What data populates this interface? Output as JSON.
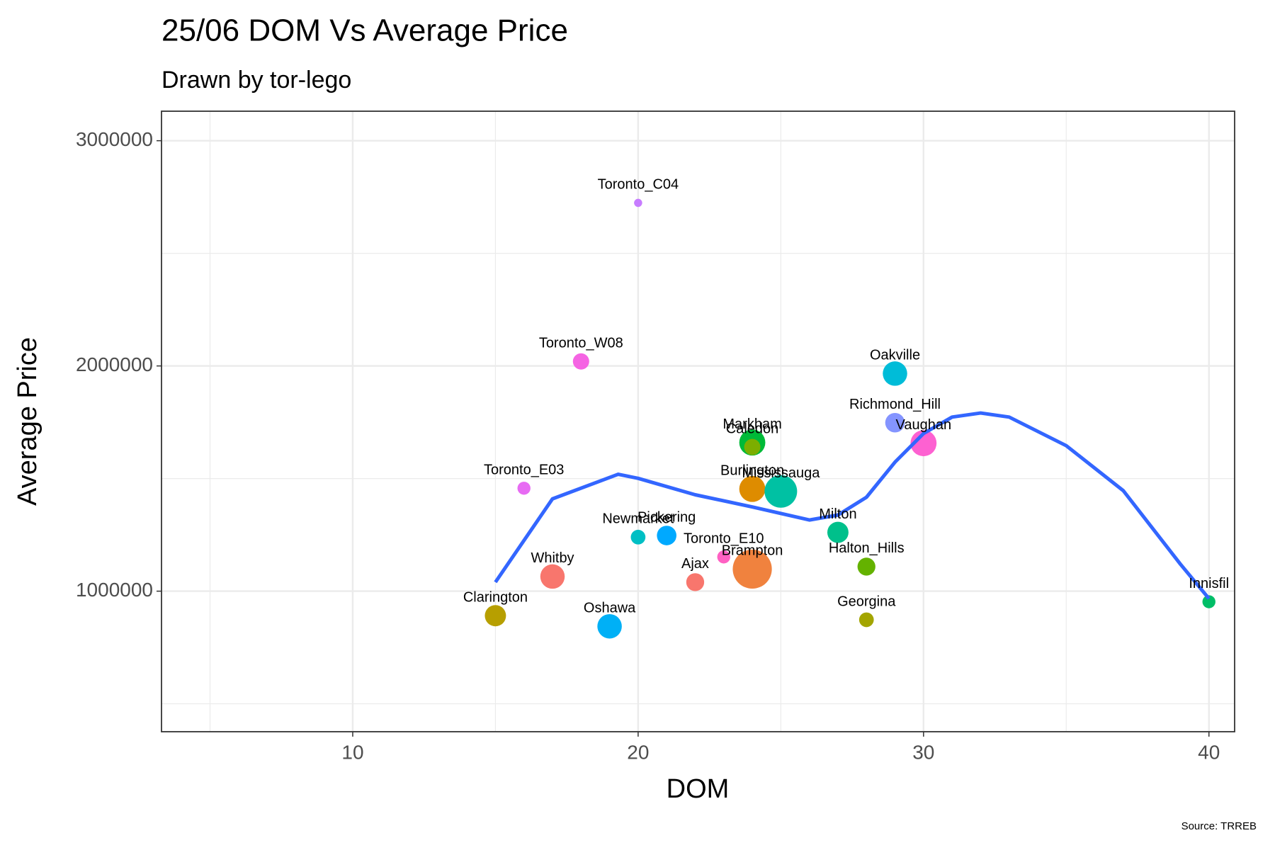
{
  "chart_data": {
    "type": "scatter",
    "title": "25/06 DOM Vs Average Price",
    "subtitle": "Drawn by tor-lego",
    "xlabel": "DOM",
    "ylabel": "Average Price",
    "caption": "Source: TRREB",
    "labels": [
      "Toronto_C04",
      "Toronto_W08",
      "Toronto_E03",
      "Clarington",
      "Whitby",
      "Oshawa",
      "Newmarket",
      "Pickering",
      "Toronto_E10",
      "Ajax",
      "Brampton",
      "Markham",
      "Caledon",
      "Burlington",
      "Mississauga",
      "Milton",
      "Halton_Hills",
      "Georgina",
      "Oakville",
      "Richmond_Hill",
      "Vaughan",
      "Innisfil"
    ],
    "x": [
      20,
      18,
      16,
      15,
      17,
      19,
      20,
      21,
      23,
      22,
      24,
      24,
      24,
      24,
      25,
      27,
      28,
      28,
      29,
      29,
      30,
      40
    ],
    "values": [
      2724000,
      2020000,
      1457000,
      891000,
      1065000,
      844000,
      1240000,
      1247000,
      1152000,
      1040000,
      1098000,
      1660000,
      1640000,
      1454000,
      1443000,
      1261000,
      1109000,
      873000,
      1966000,
      1748000,
      1657000,
      953000
    ],
    "sizes": [
      5,
      10,
      8,
      13,
      15,
      15,
      9,
      12,
      8,
      11,
      24,
      16,
      10,
      16,
      20,
      13,
      11,
      9,
      15,
      12,
      16,
      8
    ],
    "colors": [
      "#c77cff",
      "#f564e3",
      "#e76bf3",
      "#b79f00",
      "#f8766d",
      "#00b0f6",
      "#00bfc4",
      "#00a9ff",
      "#ff61c3",
      "#f8766d",
      "#f0823e",
      "#00ba38",
      "#7cae00",
      "#de8c00",
      "#00c1a3",
      "#00c08b",
      "#64b200",
      "#a3a500",
      "#00bcd8",
      "#8494ff",
      "#fd61d1",
      "#00be67"
    ],
    "smooth": {
      "color": "#3366ff",
      "x": [
        15,
        17,
        19.3,
        20,
        22,
        24,
        26,
        27,
        28,
        29,
        30,
        31,
        32,
        33,
        35,
        37,
        39,
        40
      ],
      "values": [
        1040000,
        1410000,
        1519000,
        1501000,
        1428000,
        1374000,
        1316000,
        1338000,
        1417000,
        1573000,
        1700000,
        1773000,
        1791000,
        1773000,
        1646000,
        1446000,
        1120000,
        967000
      ]
    },
    "xlim": [
      3.3,
      40.9
    ],
    "ylim": [
      376000,
      3131000
    ],
    "xticks": [
      10,
      20,
      30,
      40
    ],
    "yticks": [
      1000000,
      2000000,
      3000000
    ],
    "minor_xticks": [
      5,
      15,
      25,
      35
    ],
    "minor_yticks": [
      500000,
      1500000,
      2500000
    ],
    "grid": true
  }
}
